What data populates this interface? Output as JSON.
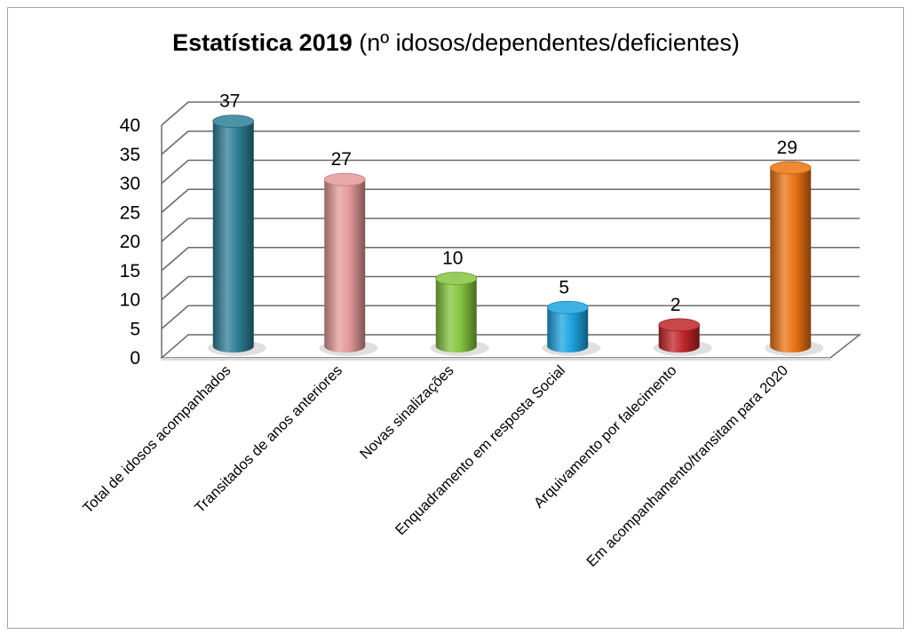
{
  "chart_data": {
    "type": "bar",
    "title_bold": "Estatística 2019",
    "title_rest": " (nº idosos/dependentes/deficientes)",
    "categories": [
      "Total de idosos acompanhados",
      "Transitados de anos anteriores",
      "Novas sinalizações",
      "Enquadramento em resposta Social",
      "Arquivamento por falecimento",
      "Em acompanhamento/transitam para 2020"
    ],
    "values": [
      37,
      27,
      10,
      5,
      2,
      29
    ],
    "colors": [
      "#2e7f96",
      "#e39b99",
      "#86c440",
      "#1ea3df",
      "#c0262a",
      "#eb7413"
    ],
    "ylim": [
      0,
      40
    ],
    "yticks": [
      0,
      5,
      10,
      15,
      20,
      25,
      30,
      35,
      40
    ],
    "grid": true,
    "style": "3d-cylinder"
  }
}
